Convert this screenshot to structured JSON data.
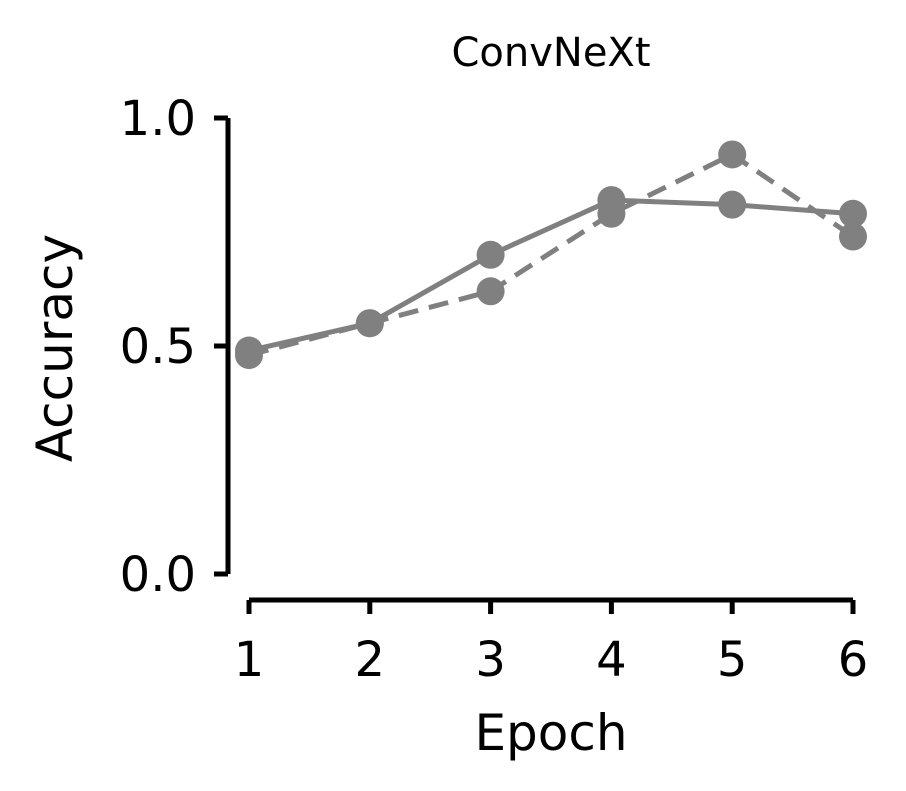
{
  "chart_data": {
    "type": "line",
    "title": "ConvNeXt",
    "xlabel": "Epoch",
    "ylabel": "Accuracy",
    "x": [
      1,
      2,
      3,
      4,
      5,
      6
    ],
    "xticks": [
      "1",
      "2",
      "3",
      "4",
      "5",
      "6"
    ],
    "yticks": [
      "0.0",
      "0.5",
      "1.0"
    ],
    "ylim": [
      0,
      1.0
    ],
    "grid": false,
    "series": [
      {
        "style": "solid",
        "color": "#808080",
        "values": [
          0.49,
          0.55,
          0.7,
          0.82,
          0.81,
          0.79
        ]
      },
      {
        "style": "dashed",
        "color": "#808080",
        "values": [
          0.48,
          0.55,
          0.62,
          0.79,
          0.92,
          0.74
        ]
      }
    ]
  }
}
